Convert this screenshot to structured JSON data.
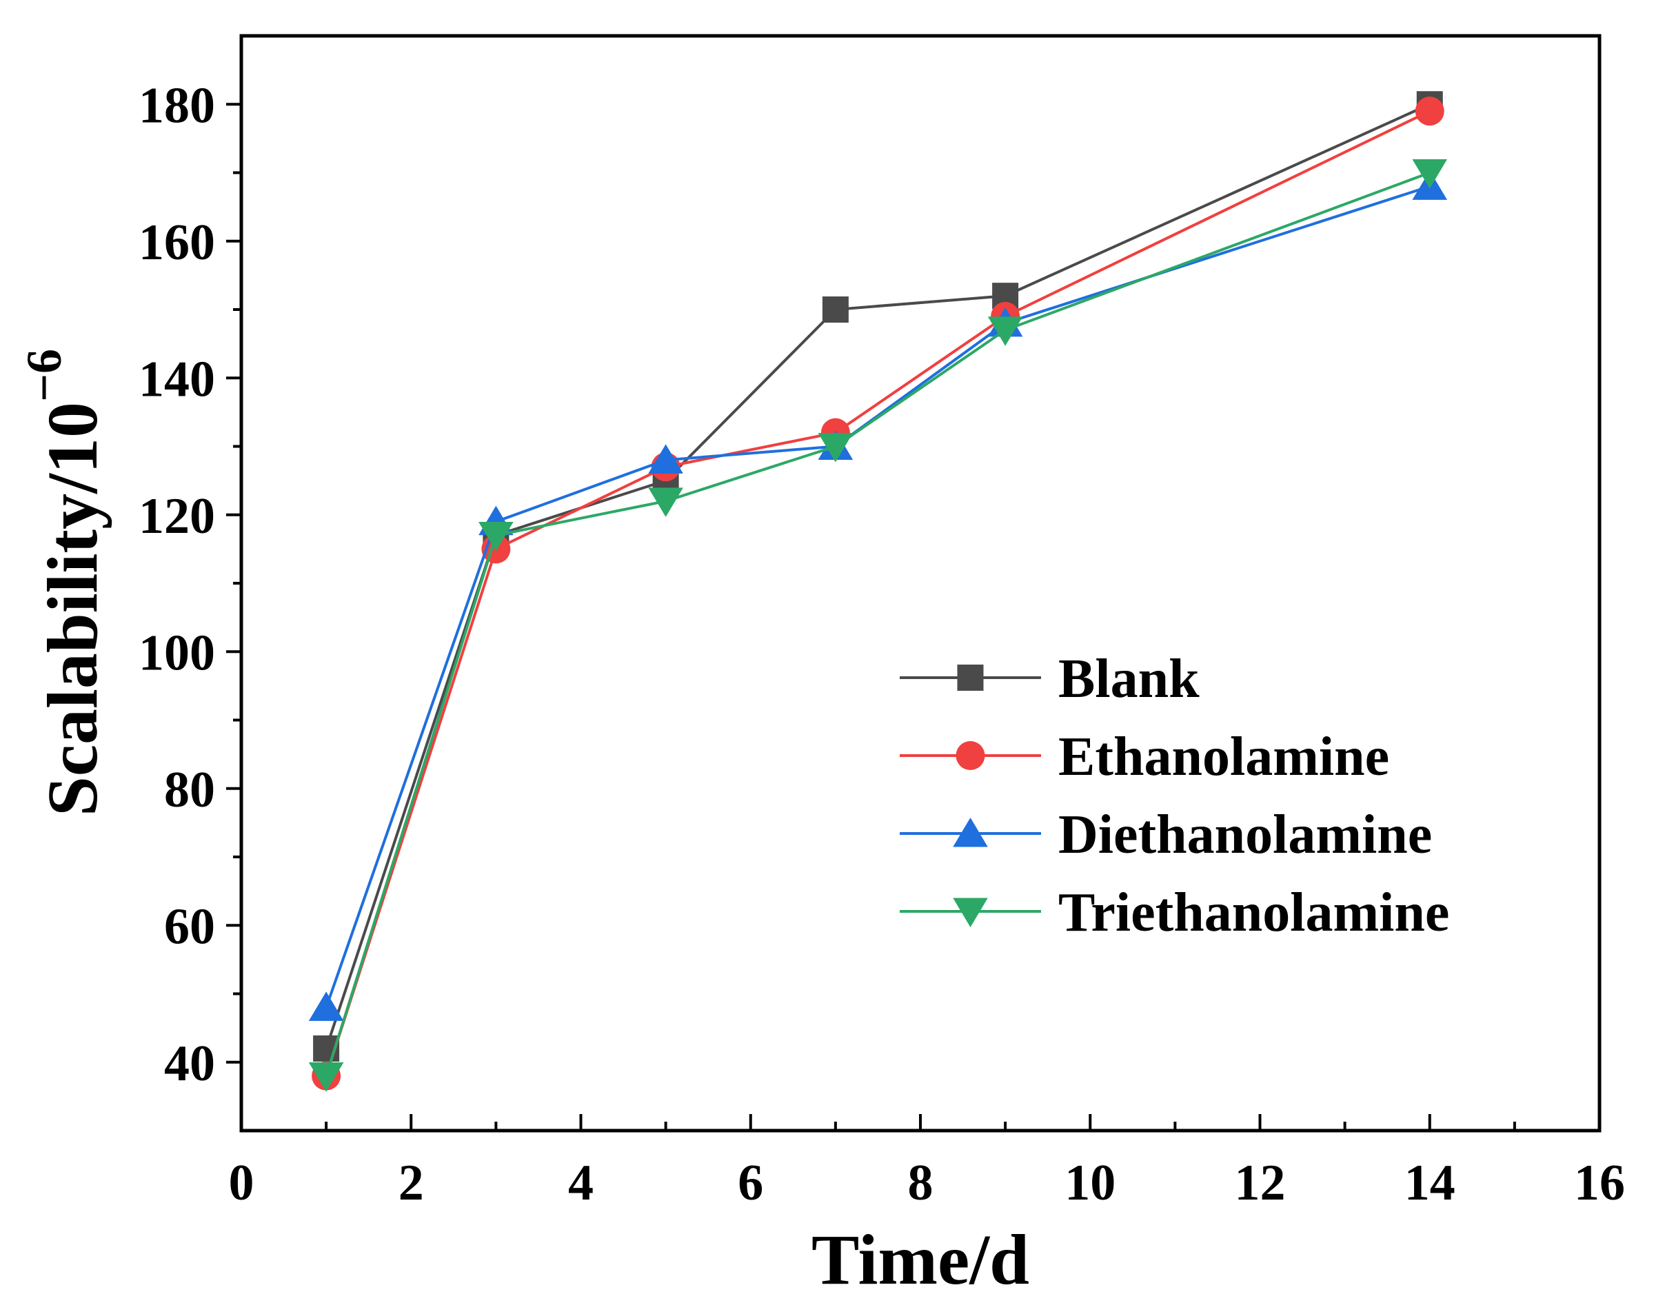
{
  "chart_data": {
    "type": "line",
    "title": "",
    "xlabel": "Time/d",
    "ylabel": "Scalability/10",
    "ylabel_exponent": "−6",
    "xlim": [
      0,
      16
    ],
    "ylim": [
      30,
      190
    ],
    "x_ticks": [
      0,
      2,
      4,
      6,
      8,
      10,
      12,
      14,
      16
    ],
    "y_ticks": [
      40,
      60,
      80,
      100,
      120,
      140,
      160,
      180
    ],
    "x_tick_labels": [
      "0",
      "2",
      "4",
      "6",
      "8",
      "10",
      "12",
      "14",
      "16"
    ],
    "y_tick_labels": [
      "40",
      "60",
      "80",
      "100",
      "120",
      "140",
      "160",
      "180"
    ],
    "grid": false,
    "legend_position": "center-right",
    "x": [
      1,
      3,
      5,
      7,
      9,
      14
    ],
    "series": [
      {
        "name": "Blank",
        "color": "#4a4a4a",
        "marker": "square",
        "values": [
          42,
          117,
          125,
          150,
          152,
          180
        ]
      },
      {
        "name": "Ethanolamine",
        "color": "#f0403f",
        "marker": "circle",
        "values": [
          38,
          115,
          127,
          132,
          149,
          179
        ]
      },
      {
        "name": "Diethanolamine",
        "color": "#1f6fde",
        "marker": "triangle-up",
        "values": [
          48,
          119,
          128,
          130,
          148,
          168
        ]
      },
      {
        "name": "Triethanolamine",
        "color": "#2ca866",
        "marker": "triangle-down",
        "values": [
          38,
          117,
          122,
          130,
          147,
          170
        ]
      }
    ]
  }
}
